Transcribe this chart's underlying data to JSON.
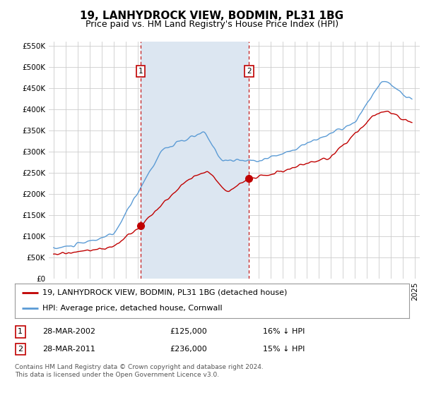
{
  "title": "19, LANHYDROCK VIEW, BODMIN, PL31 1BG",
  "subtitle": "Price paid vs. HM Land Registry's House Price Index (HPI)",
  "ylim": [
    0,
    560000
  ],
  "yticks": [
    0,
    50000,
    100000,
    150000,
    200000,
    250000,
    300000,
    350000,
    400000,
    450000,
    500000,
    550000
  ],
  "ytick_labels": [
    "£0",
    "£50K",
    "£100K",
    "£150K",
    "£200K",
    "£250K",
    "£300K",
    "£350K",
    "£400K",
    "£450K",
    "£500K",
    "£550K"
  ],
  "hpi_color": "#5b9bd5",
  "price_color": "#c00000",
  "vline_color": "#c00000",
  "plot_bg_color": "#ffffff",
  "fig_bg_color": "#ffffff",
  "grid_color": "#cccccc",
  "shade_color": "#dce6f1",
  "sale1_x": 2002.23,
  "sale1_y": 125000,
  "sale2_x": 2011.23,
  "sale2_y": 236000,
  "legend_line1": "19, LANHYDROCK VIEW, BODMIN, PL31 1BG (detached house)",
  "legend_line2": "HPI: Average price, detached house, Cornwall",
  "table_row1": [
    "1",
    "28-MAR-2002",
    "£125,000",
    "16% ↓ HPI"
  ],
  "table_row2": [
    "2",
    "28-MAR-2011",
    "£236,000",
    "15% ↓ HPI"
  ],
  "footer": "Contains HM Land Registry data © Crown copyright and database right 2024.\nThis data is licensed under the Open Government Licence v3.0.",
  "title_fontsize": 11,
  "subtitle_fontsize": 9,
  "tick_fontsize": 7.5,
  "legend_fontsize": 8,
  "table_fontsize": 8,
  "footer_fontsize": 6.5,
  "xmin": 1994.6,
  "xmax": 2025.4
}
